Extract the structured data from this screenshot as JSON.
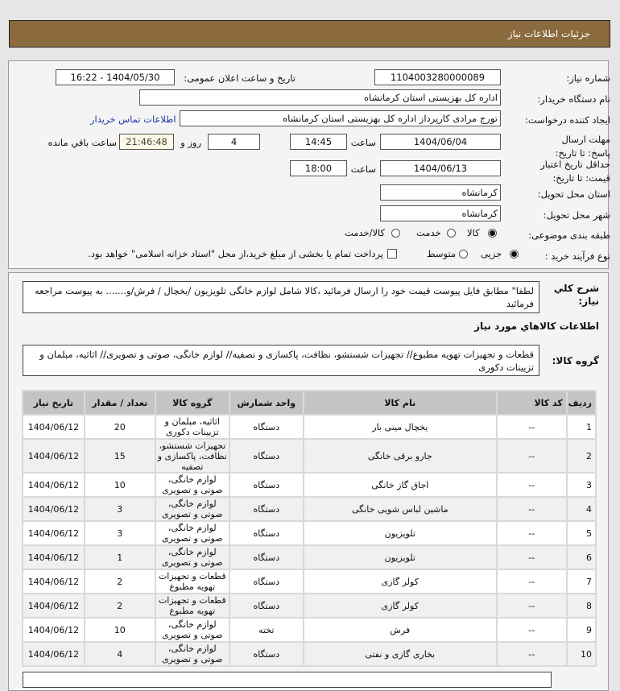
{
  "header": {
    "title": "جزئیات اطلاعات نیاز"
  },
  "form": {
    "need_number": {
      "label": "شماره نیاز:",
      "value": "1104003280000089"
    },
    "announce": {
      "label": "تاریخ و ساعت اعلان عمومی:",
      "value": "1404/05/30 - 16:22"
    },
    "buyer": {
      "label": "نام دستگاه خریدار:",
      "value": "اداره کل بهزیستی استان کرمانشاه"
    },
    "creator": {
      "label": "ایجاد کننده درخواست:",
      "value": "تورج مرادی کارپرداز  اداره کل بهزیستی استان کرمانشاه",
      "contact_link": "اطلاعات تماس خریدار"
    },
    "deadline": {
      "label": "مهلت ارسال پاسخ: تا تاریخ:",
      "date": "1404/06/04",
      "time_label": "ساعت",
      "time": "14:45",
      "days": "4",
      "days_label": "روز و",
      "remaining": "21:46:48",
      "remaining_label": "ساعت باقي مانده"
    },
    "validity": {
      "label": "حداقل تاریخ اعتبار قیمت: تا تاریخ:",
      "date": "1404/06/13",
      "time_label": "ساعت",
      "time": "18:00"
    },
    "province": {
      "label": "استان محل تحویل:",
      "value": "کرمانشاه"
    },
    "city": {
      "label": "شهر محل تحویل:",
      "value": "کرمانشاه"
    },
    "category": {
      "label": "طبقه بندی موضوعی:",
      "options": [
        {
          "label": "کالا",
          "selected": true
        },
        {
          "label": "خدمت",
          "selected": false
        },
        {
          "label": "کالا/خدمت",
          "selected": false
        }
      ]
    },
    "process": {
      "label": "نوع فرآیند خرید :",
      "options": [
        {
          "label": "جزیی",
          "selected": true
        },
        {
          "label": "متوسط",
          "selected": false
        }
      ],
      "checkbox_label": "پرداخت تمام یا بخشی از مبلغ خرید،از محل \"اسناد خزانه اسلامی\" خواهد بود.",
      "checkbox_checked": false
    }
  },
  "details": {
    "description_label": "شرح کلي نیاز:",
    "description": "لطفا\" مطابق فایل پیوست قیمت خود را ارسال فرمائید ،کالا شامل لوازم خانگی تلویزیون /یخچال / فرش/و....... به پیوست مراجعه فرمائید",
    "goods_heading": "اطلاعات کالاهاي مورد نیاز",
    "group_label": "گروه کالا:",
    "group": "قطعات و تجهیزات تهویه مطبوع// تجهیزات شستشو، نظافت، پاکسازی و تصفیه// لوازم خانگی، صوتی و تصویری// اثاثیه، مبلمان و تزیینات دکوری"
  },
  "table": {
    "columns": [
      "ردیف",
      "کد کالا",
      "نام کالا",
      "واحد شمارش",
      "گروه کالا",
      "تعداد / مقدار",
      "تاریخ نیاز"
    ],
    "rows": [
      [
        "1",
        "--",
        "یخچال مینی بار",
        "دستگاه",
        "اثاثیه، مبلمان و تزیینات دکوری",
        "20",
        "1404/06/12"
      ],
      [
        "2",
        "--",
        "جارو برقی خانگی",
        "دستگاه",
        "تجهیزات شستشو، نظافت، پاکسازی و تصفیه",
        "15",
        "1404/06/12"
      ],
      [
        "3",
        "--",
        "اجاق گاز خانگی",
        "دستگاه",
        "لوازم خانگی، صوتی و تصویری",
        "10",
        "1404/06/12"
      ],
      [
        "4",
        "--",
        "ماشین لباس شویی خانگی",
        "دستگاه",
        "لوازم خانگی، صوتی و تصویری",
        "3",
        "1404/06/12"
      ],
      [
        "5",
        "--",
        "تلویزیون",
        "دستگاه",
        "لوازم خانگی، صوتی و تصویری",
        "3",
        "1404/06/12"
      ],
      [
        "6",
        "--",
        "تلویزیون",
        "دستگاه",
        "لوازم خانگی، صوتی و تصویری",
        "1",
        "1404/06/12"
      ],
      [
        "7",
        "--",
        "کولر گازی",
        "دستگاه",
        "قطعات و تجهیزات تهویه مطبوع",
        "2",
        "1404/06/12"
      ],
      [
        "8",
        "--",
        "کولر گازی",
        "دستگاه",
        "قطعات و تجهیزات تهویه مطبوع",
        "2",
        "1404/06/12"
      ],
      [
        "9",
        "--",
        "فرش",
        "تخته",
        "لوازم خانگی، صوتی و تصویری",
        "10",
        "1404/06/12"
      ],
      [
        "10",
        "--",
        "بخاری گازی و نفتی",
        "دستگاه",
        "لوازم خانگی، صوتی و تصویری",
        "4",
        "1404/06/12"
      ]
    ]
  },
  "colors": {
    "header": "#8b6a3e",
    "link": "#1a3aa8",
    "remaining_bg": "#fbf8e6"
  }
}
